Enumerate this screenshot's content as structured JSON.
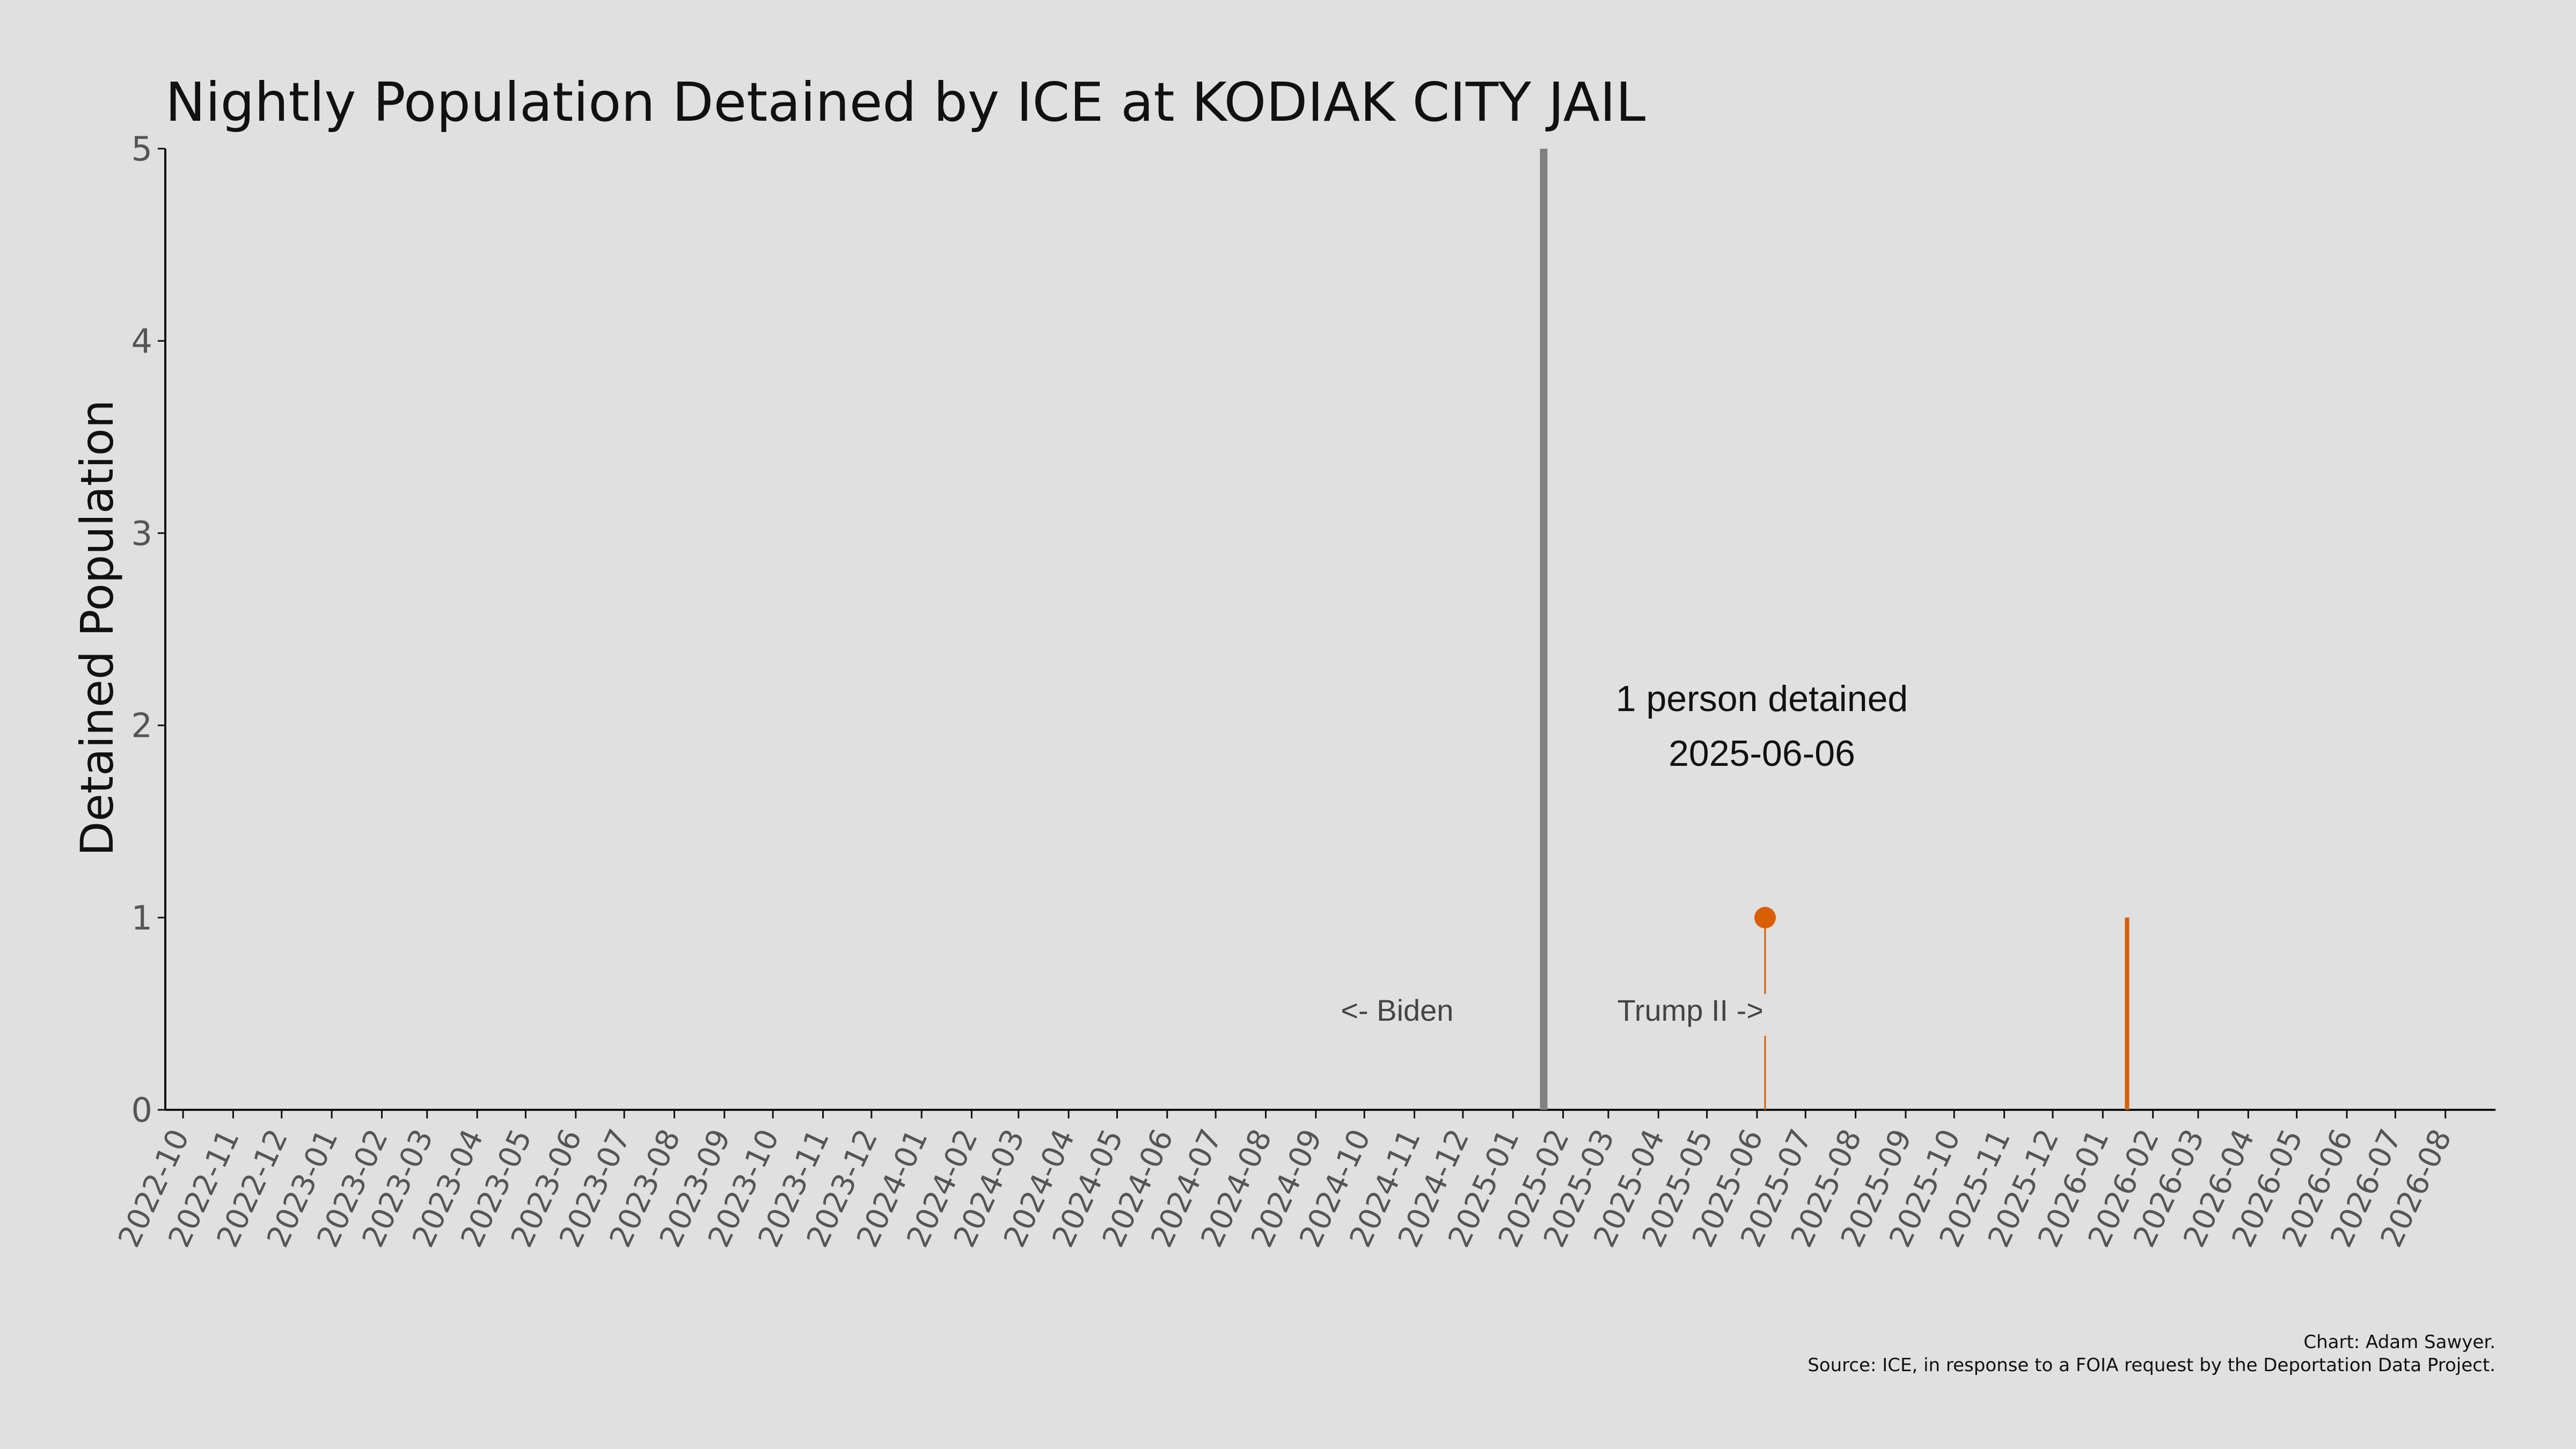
{
  "chart_data": {
    "type": "line",
    "title": "Nightly Population Detained by ICE at KODIAK CITY JAIL",
    "xlabel": "",
    "ylabel": "Detained Population",
    "xlim": [
      "2022-09-20",
      "2026-09-01"
    ],
    "ylim": [
      0,
      5
    ],
    "yticks": [
      0,
      1,
      2,
      3,
      4,
      5
    ],
    "xticks": [
      "2022-10",
      "2022-11",
      "2022-12",
      "2023-01",
      "2023-02",
      "2023-03",
      "2023-04",
      "2023-05",
      "2023-06",
      "2023-07",
      "2023-08",
      "2023-09",
      "2023-10",
      "2023-11",
      "2023-12",
      "2024-01",
      "2024-02",
      "2024-03",
      "2024-04",
      "2024-05",
      "2024-06",
      "2024-07",
      "2024-08",
      "2024-09",
      "2024-10",
      "2024-11",
      "2024-12",
      "2025-01",
      "2025-02",
      "2025-03",
      "2025-04",
      "2025-05",
      "2025-06",
      "2025-07",
      "2025-08",
      "2025-09",
      "2025-10",
      "2025-11",
      "2025-12",
      "2026-01",
      "2026-02",
      "2026-03",
      "2026-04",
      "2026-05",
      "2026-06",
      "2026-07",
      "2026-08"
    ],
    "grid": false,
    "series": [
      {
        "color": "#d95f02",
        "points": [
          {
            "x": "2025-06-06",
            "y": 1
          },
          {
            "x": "2026-01-16",
            "y": 1
          }
        ]
      }
    ],
    "highlight_point": {
      "x": "2025-06-06",
      "y": 1
    },
    "divider": {
      "x": "2025-01-20",
      "color": "#808080"
    },
    "era_labels": {
      "left": "<- Biden",
      "right": "Trump II ->"
    },
    "annotation": {
      "line1": "1 person detained",
      "line2": "2025-06-06"
    },
    "credits": {
      "line1": "Chart: Adam Sawyer.",
      "line2": "Source: ICE, in response to a FOIA request by the Deportation Data Project."
    }
  }
}
